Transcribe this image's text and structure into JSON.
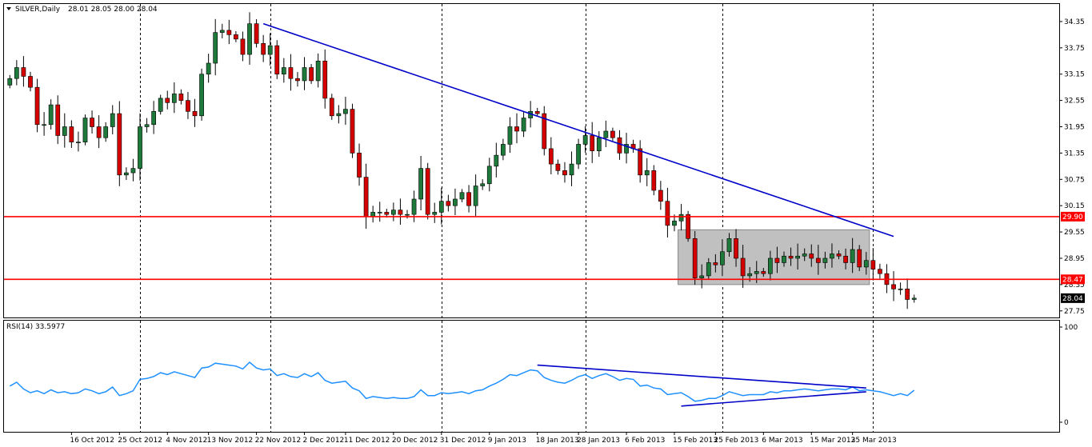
{
  "header": {
    "symbol_label": "SILVER,Daily",
    "ohlc_text": "28.01 28.05 28.00 28.04",
    "rsi_label": "RSI(14) 33.5977"
  },
  "colors": {
    "bull": "#1e7a3a",
    "bear": "#d40000",
    "trendline": "#0000c8",
    "support_resistance": "#ff0000",
    "rsi_line": "#1e90ff",
    "range_box": "#c0c0c0",
    "grid": "#000000"
  },
  "chart_data": [
    {
      "type": "candlestick",
      "title": "SILVER,Daily",
      "ylim": [
        27.6,
        34.75
      ],
      "y_ticks": [
        "34.35",
        "33.75",
        "33.15",
        "32.55",
        "31.95",
        "31.35",
        "30.75",
        "30.15",
        "29.55",
        "28.95",
        "28.35",
        "27.75"
      ],
      "x_ticks": [
        "16 Oct 2012",
        "25 Oct 2012",
        "4 Nov 2012",
        "13 Nov 2012",
        "22 Nov 2012",
        "2 Dec 2012",
        "11 Dec 2012",
        "20 Dec 2012",
        "31 Dec 2012",
        "9 Jan 2013",
        "18 Jan 2013",
        "28 Jan 2013",
        "6 Feb 2013",
        "15 Feb 2013",
        "25 Feb 2013",
        "6 Mar 2013",
        "15 Mar 2013",
        "25 Mar 2013"
      ],
      "price_labels": [
        {
          "text": "29.90",
          "value": 29.9,
          "kind": "resistance"
        },
        {
          "text": "28.47",
          "value": 28.47,
          "kind": "support"
        },
        {
          "text": "28.04",
          "value": 28.04,
          "kind": "current"
        }
      ],
      "horizontal_lines": [
        29.9,
        28.47
      ],
      "trendline": {
        "from": [
          "2012-11-24",
          34.3
        ],
        "to": [
          "2013-04-02",
          29.45
        ]
      },
      "range_box": {
        "from": "2013-02-18",
        "to": "2013-03-27",
        "high": 29.6,
        "low": 28.35
      },
      "vertical_markers": [
        "2012-10-30",
        "2012-11-26",
        "2012-12-31",
        "2013-01-29",
        "2013-02-26",
        "2013-03-28"
      ],
      "closes": [
        33.05,
        33.3,
        33.1,
        32.85,
        32.0,
        32.0,
        32.45,
        31.75,
        31.95,
        31.6,
        31.6,
        32.15,
        31.95,
        31.7,
        31.95,
        32.25,
        30.85,
        30.9,
        31.0,
        31.95,
        32.0,
        32.3,
        32.6,
        32.5,
        32.7,
        32.55,
        32.3,
        32.2,
        33.15,
        33.4,
        34.1,
        34.15,
        34.05,
        33.95,
        33.6,
        34.3,
        33.85,
        33.6,
        33.8,
        33.15,
        33.3,
        33.05,
        33.0,
        33.3,
        33.0,
        33.45,
        32.6,
        32.2,
        32.25,
        32.35,
        31.35,
        30.8,
        29.9,
        30.0,
        30.0,
        29.95,
        30.05,
        29.95,
        29.95,
        30.3,
        31.0,
        29.95,
        30.0,
        30.25,
        30.15,
        30.3,
        30.45,
        30.15,
        30.6,
        30.65,
        31.05,
        31.3,
        31.55,
        31.95,
        31.85,
        32.15,
        32.3,
        32.25,
        31.45,
        31.1,
        30.95,
        30.85,
        31.1,
        31.55,
        31.75,
        31.4,
        31.7,
        31.85,
        31.7,
        31.35,
        31.55,
        31.45,
        30.85,
        30.95,
        30.5,
        30.25,
        29.7,
        29.8,
        29.95,
        29.4,
        28.5,
        28.55,
        28.85,
        28.8,
        29.1,
        29.4,
        28.95,
        28.55,
        28.6,
        28.65,
        28.6,
        28.95,
        28.85,
        29.0,
        28.95,
        29.0,
        29.05,
        28.95,
        28.85,
        28.95,
        29.05,
        29.0,
        28.85,
        29.15,
        28.75,
        28.9,
        28.7,
        28.6,
        28.35,
        28.25,
        28.25,
        28.01,
        28.04
      ]
    },
    {
      "type": "line",
      "title": "RSI(14) 33.5977",
      "ylim": [
        0,
        100
      ],
      "y_ticks": [
        "100",
        "0"
      ],
      "values": [
        38,
        42,
        35,
        31,
        33,
        30,
        34,
        31,
        32,
        30,
        31,
        35,
        33,
        30,
        32,
        37,
        28,
        30,
        33,
        45,
        46,
        48,
        52,
        50,
        53,
        51,
        49,
        47,
        57,
        58,
        62,
        61,
        60,
        59,
        56,
        63,
        57,
        55,
        56,
        49,
        51,
        48,
        47,
        51,
        48,
        52,
        44,
        41,
        42,
        43,
        36,
        33,
        25,
        27,
        26,
        25,
        26,
        25,
        25,
        27,
        34,
        28,
        28,
        31,
        30,
        31,
        32,
        30,
        33,
        34,
        38,
        41,
        45,
        50,
        49,
        52,
        55,
        54,
        47,
        44,
        42,
        41,
        44,
        48,
        50,
        46,
        49,
        51,
        48,
        44,
        46,
        45,
        38,
        39,
        36,
        35,
        29,
        30,
        31,
        27,
        22,
        23,
        25,
        25,
        28,
        32,
        30,
        28,
        29,
        29,
        29,
        32,
        31,
        33,
        33,
        34,
        35,
        34,
        33,
        34,
        35,
        35,
        34,
        37,
        33,
        34,
        33,
        32,
        30,
        28,
        30,
        28,
        33.6
      ]
    }
  ]
}
